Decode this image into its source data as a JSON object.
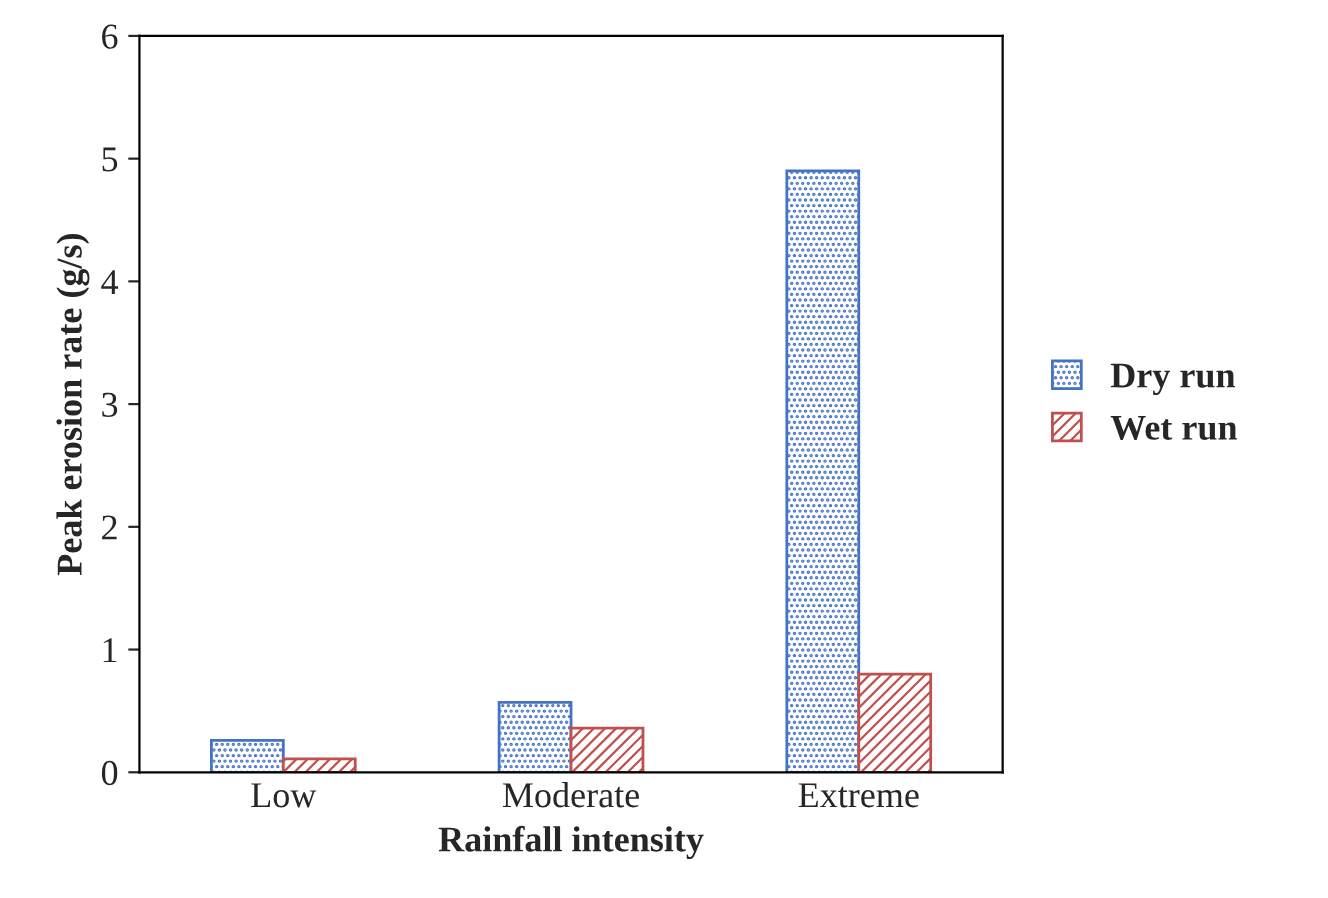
{
  "chart_data": {
    "type": "bar",
    "xlabel": "Rainfall intensity",
    "ylabel": "Peak erosion rate (g/s)",
    "categories": [
      "Low",
      "Moderate",
      "Extreme"
    ],
    "series": [
      {
        "name": "Dry run",
        "color": "#4472c4",
        "values": [
          0.26,
          0.57,
          4.9
        ]
      },
      {
        "name": "Wet run",
        "color": "#c0504d",
        "values": [
          0.11,
          0.36,
          0.8
        ]
      }
    ],
    "ylim": [
      0,
      6
    ],
    "yticks": [
      0,
      1,
      2,
      3,
      4,
      5,
      6
    ],
    "grid": false,
    "legend": "right"
  }
}
